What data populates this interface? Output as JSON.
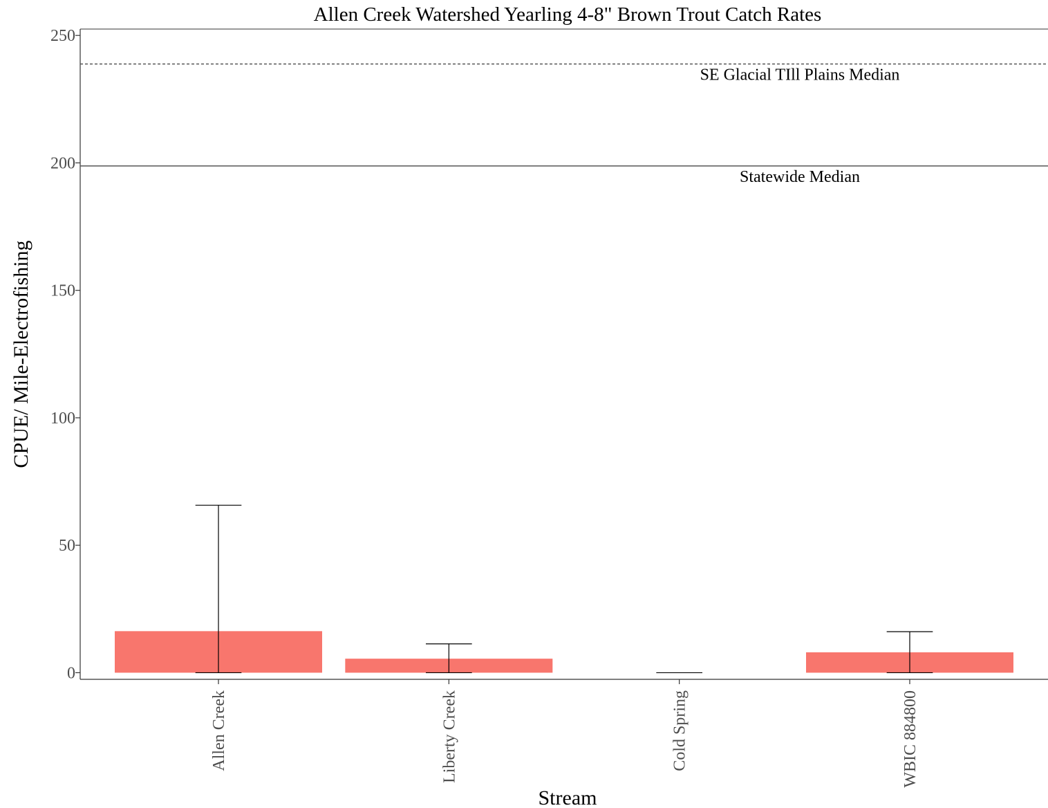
{
  "chart_data": {
    "type": "bar",
    "title": "Allen Creek Watershed Yearling 4-8\" Brown Trout Catch Rates",
    "xlabel": "Stream",
    "ylabel": "CPUE/ Mile-Electrofishing",
    "categories": [
      "Allen Creek",
      "Liberty Creek",
      "Cold Spring",
      "WBIC 884800"
    ],
    "values": [
      16.3,
      5.5,
      0,
      8.0
    ],
    "error_upper": [
      65.7,
      11.3,
      0,
      16.1
    ],
    "error_lower": [
      0,
      0,
      0,
      0
    ],
    "ylim": [
      -2.6,
      252.5
    ],
    "yticks": [
      0,
      50,
      100,
      150,
      200,
      250
    ],
    "grid": false,
    "legend": "none",
    "reference_lines": [
      {
        "label": "SE Glacial TIll Plains Median",
        "value": 238.8,
        "style": "dashed"
      },
      {
        "label": "Statewide Median",
        "value": 198.8,
        "style": "solid"
      }
    ],
    "colors": {
      "bar": "#F8766D",
      "error_bar": "#000000",
      "axis": "#333333"
    }
  }
}
